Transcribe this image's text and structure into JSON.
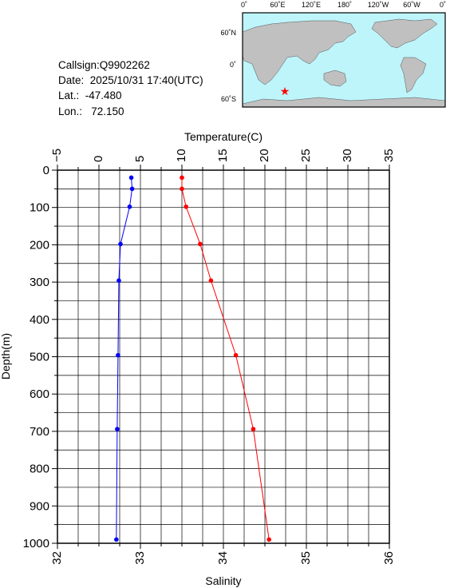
{
  "info": {
    "callsign": "Callsign:Q9902262",
    "date": "Date:  2025/10/31 17:40(UTC)",
    "lat": "Lat.:  -47.480",
    "lon": "Lon.:   72.150"
  },
  "map": {
    "lon_labels": [
      "0˚",
      "60˚E",
      "120˚E",
      "180˚",
      "120˚W",
      "60˚W",
      "0˚"
    ],
    "lat_labels": [
      "60˚N",
      "0˚",
      "60˚S"
    ],
    "marker": {
      "lat": -47.48,
      "lon": 72.15,
      "symbol": "star"
    },
    "colors": {
      "ocean": "#bdf5fb",
      "land": "#c0c0c0",
      "marker": "#ff0000"
    }
  },
  "chart_data": {
    "type": "line",
    "top_axis": {
      "label": "Temperature(C)",
      "range": [
        -5,
        35
      ],
      "ticks": [
        "−5",
        "0",
        "5",
        "10",
        "15",
        "20",
        "25",
        "30",
        "35"
      ]
    },
    "bottom_axis": {
      "label": "Salinity",
      "range": [
        32,
        36
      ],
      "ticks": [
        "32",
        "33",
        "34",
        "35",
        "36"
      ]
    },
    "left_axis": {
      "label": "Depth(m)",
      "range": [
        0,
        1000
      ],
      "inverted": true,
      "ticks": [
        "0",
        "100",
        "200",
        "300",
        "400",
        "500",
        "600",
        "700",
        "800",
        "900",
        "1000"
      ]
    },
    "grid": true,
    "series": [
      {
        "color": "#0000ff",
        "axis": "top",
        "points": [
          [
            3.9,
            20
          ],
          [
            4.0,
            50
          ],
          [
            3.7,
            98
          ],
          [
            2.6,
            198
          ],
          [
            2.4,
            296
          ],
          [
            2.3,
            496
          ],
          [
            2.2,
            694
          ],
          [
            2.1,
            990
          ]
        ]
      },
      {
        "color": "#ff0000",
        "axis": "bottom",
        "points": [
          [
            33.5,
            20
          ],
          [
            33.5,
            50
          ],
          [
            33.55,
            98
          ],
          [
            33.72,
            198
          ],
          [
            33.85,
            296
          ],
          [
            34.15,
            496
          ],
          [
            34.36,
            694
          ],
          [
            34.55,
            990
          ]
        ]
      }
    ]
  }
}
